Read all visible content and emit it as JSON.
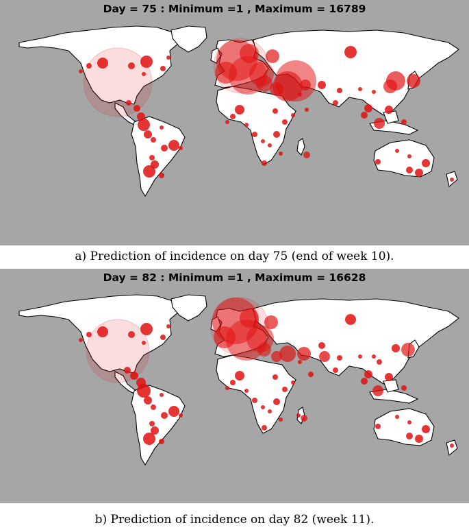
{
  "maps": [
    {
      "title": "Day = 75 : Minimum =1 , Maximum = 16789",
      "caption": "a) Prediction of incidence on day 75 (end of week 10).",
      "bubble_color": "#e01010",
      "background_color": "#a6a6a6"
    },
    {
      "title": "Day = 82 : Minimum =1 , Maximum = 16628",
      "caption": "b) Prediction of incidence on day 82 (week 11).",
      "bubble_color": "#e01010",
      "background_color": "#a6a6a6"
    }
  ]
}
